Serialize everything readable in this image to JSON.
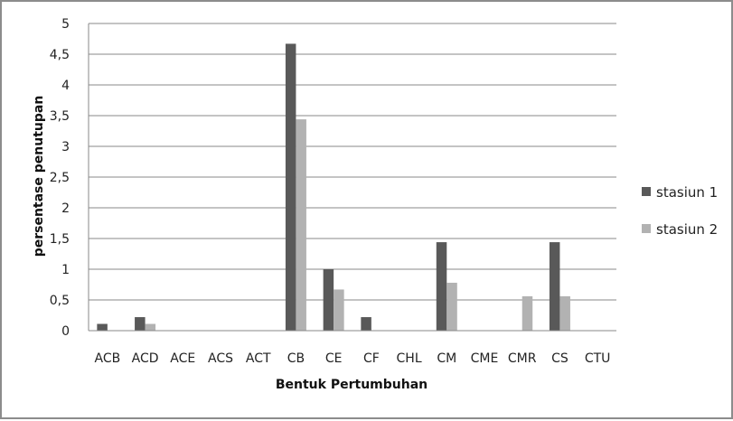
{
  "chart_data": {
    "type": "bar",
    "title": "",
    "xlabel": "Bentuk Pertumbuhan",
    "ylabel": "persentase penutupan",
    "categories": [
      "ACB",
      "ACD",
      "ACE",
      "ACS",
      "ACT",
      "CB",
      "CE",
      "CF",
      "CHL",
      "CM",
      "CME",
      "CMR",
      "CS",
      "CTU"
    ],
    "series": [
      {
        "name": "stasiun 1",
        "color": "#595959",
        "values": [
          0.11,
          0.22,
          0,
          0,
          0,
          4.67,
          1.0,
          0.22,
          0,
          1.44,
          0,
          0,
          1.44,
          0
        ]
      },
      {
        "name": "stasiun 2",
        "color": "#b2b2b2",
        "values": [
          0,
          0.11,
          0,
          0,
          0,
          3.44,
          0.67,
          0,
          0,
          0.78,
          0,
          0.56,
          0.56,
          0
        ]
      }
    ],
    "ylim": [
      0,
      5
    ],
    "yticks": [
      "0",
      "0,5",
      "1",
      "1,5",
      "2",
      "2,5",
      "3",
      "3,5",
      "4",
      "4,5",
      "5"
    ],
    "grid": true,
    "legend": "right"
  }
}
